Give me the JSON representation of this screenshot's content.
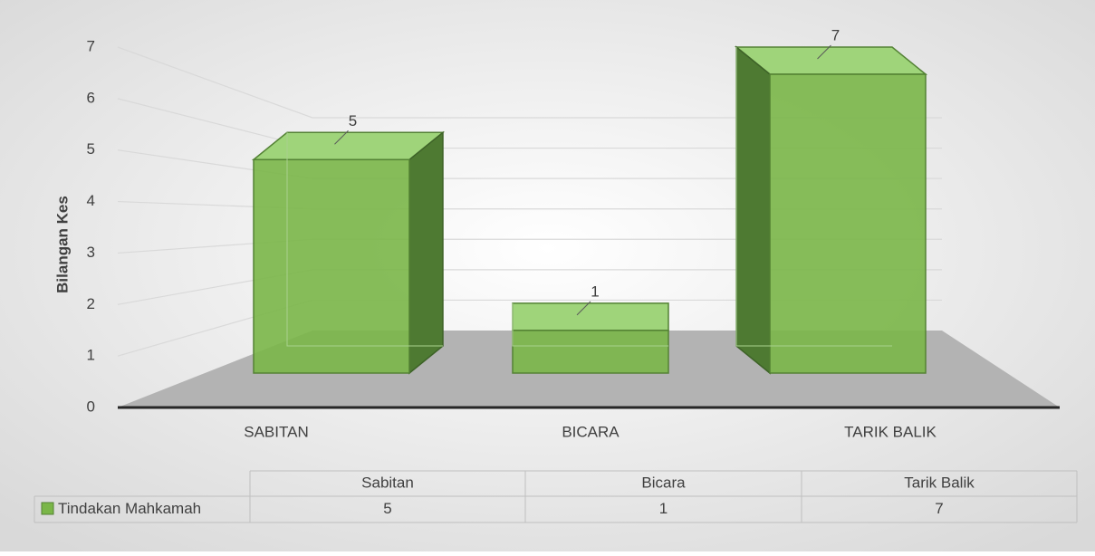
{
  "chart_data": {
    "type": "bar3d",
    "ylabel": "Bilangan Kes",
    "categories": [
      "SABITAN",
      "BICARA",
      "TARIK BALIK"
    ],
    "series": [
      {
        "name": "Tindakan Mahkamah",
        "color": "#7ab648",
        "values": [
          5,
          1,
          7
        ]
      }
    ],
    "ylim": [
      0,
      7
    ],
    "yticks": [
      0,
      1,
      2,
      3,
      4,
      5,
      6,
      7
    ],
    "grid": true,
    "table": {
      "columns": [
        "Sabitan",
        "Bicara",
        "Tarik Balik"
      ]
    }
  }
}
